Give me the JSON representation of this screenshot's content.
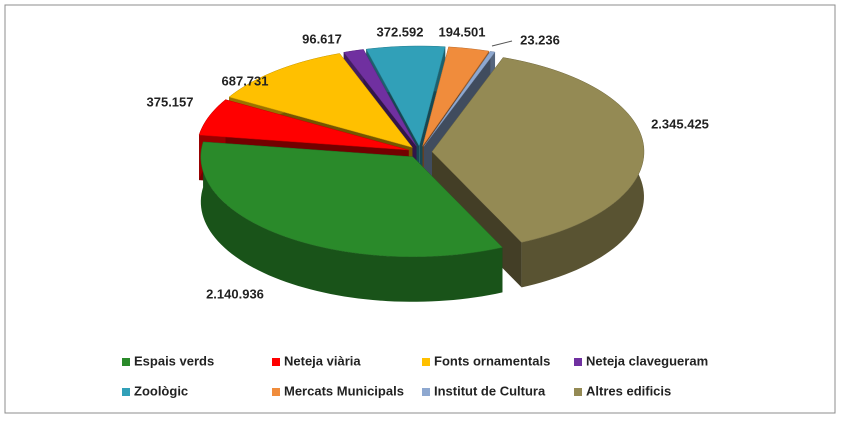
{
  "chart_data": {
    "type": "pie3d",
    "categories": [
      "Espais verds",
      "Neteja viària",
      "Fonts ornamentals",
      "Neteja clavegueram",
      "Zoològic",
      "Mercats Municipals",
      "Institut de Cultura",
      "Altres edificis"
    ],
    "values": [
      2140936,
      375157,
      687731,
      96617,
      372592,
      194501,
      23236,
      2345425
    ],
    "value_labels": [
      "2.140.936",
      "375.157",
      "687.731",
      "96.617",
      "372.592",
      "194.501",
      "23.236",
      "2.345.425"
    ],
    "colors": [
      "#2a8a2a",
      "#ff0000",
      "#ffc000",
      "#7030a0",
      "#31a0b8",
      "#f08c3c",
      "#8ea8d0",
      "#948a54"
    ],
    "legend": "bottom"
  }
}
